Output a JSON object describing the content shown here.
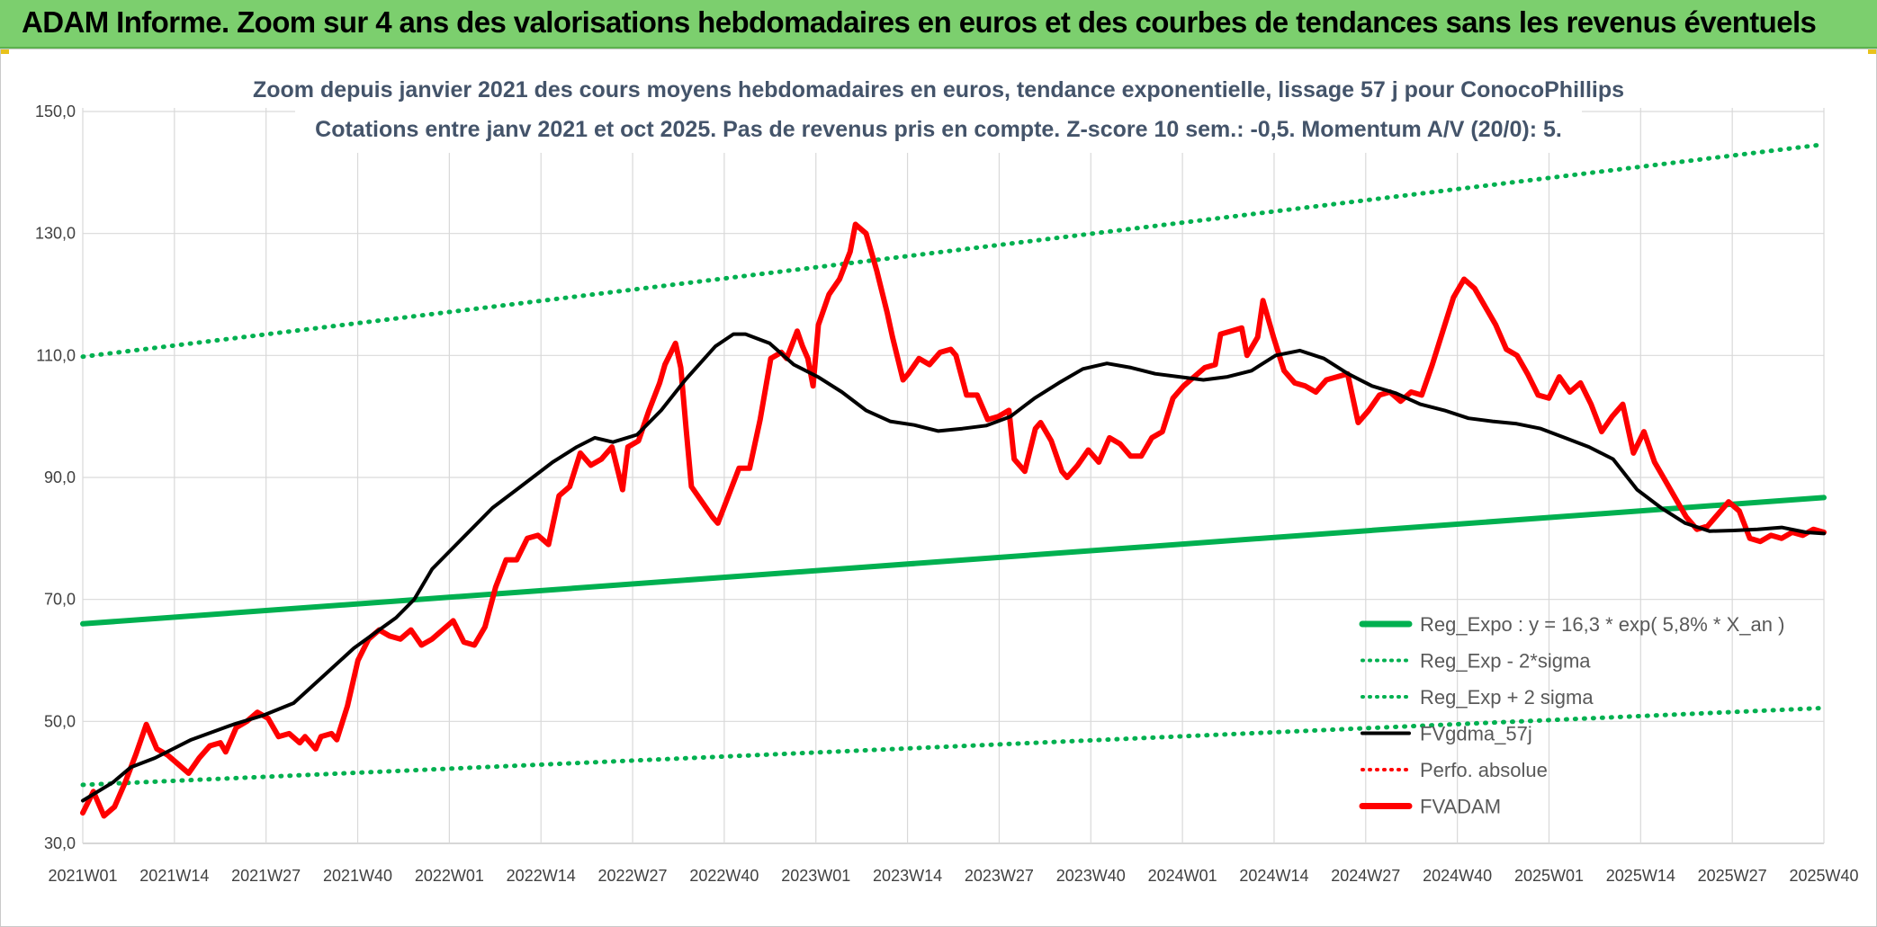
{
  "header": {
    "banner_title": "ADAM Informe. Zoom sur 4 ans des valorisations hebdomadaires en euros et des courbes de tendances sans les revenus éventuels"
  },
  "chart_data": {
    "type": "line",
    "title": "Zoom depuis janvier 2021 des cours moyens hebdomadaires en euros, tendance exponentielle, lissage 57 j pour ConocoPhillips",
    "subtitle": "Cotations entre janv 2021 et oct 2025. Pas de revenus pris en compte. Z-score 10 sem.: -0,5. Momentum A/V (20/0): 5.",
    "xlabel": "",
    "ylabel": "",
    "ylim": [
      30,
      150
    ],
    "grid": true,
    "legend_position": "bottom-right",
    "y_ticks": [
      "30,0",
      "50,0",
      "70,0",
      "90,0",
      "110,0",
      "130,0",
      "150,0"
    ],
    "x_ticks": [
      "2021W01",
      "2021W14",
      "2021W27",
      "2021W40",
      "2022W01",
      "2022W14",
      "2022W27",
      "2022W40",
      "2023W01",
      "2023W14",
      "2023W27",
      "2023W40",
      "2024W01",
      "2024W14",
      "2024W27",
      "2024W40",
      "2025W01",
      "2025W14",
      "2025W27",
      "2025W40"
    ],
    "series": [
      {
        "name": "Reg_Expo : y = 16,3 * exp( 5,8% *  X_an )",
        "color": "#00b050",
        "style": "solid",
        "points": [
          [
            0,
            66.0
          ],
          [
            247,
            86.7
          ]
        ]
      },
      {
        "name": "Reg_Exp - 2*sigma",
        "color": "#00b050",
        "style": "dotted",
        "points": [
          [
            0,
            39.6
          ],
          [
            247,
            52.2
          ]
        ]
      },
      {
        "name": "Reg_Exp + 2 sigma",
        "color": "#00b050",
        "style": "dotted",
        "points": [
          [
            0,
            109.8
          ],
          [
            247,
            144.6
          ]
        ]
      },
      {
        "name": "FVgdma_57j",
        "color": "#000000",
        "style": "solid",
        "points": [
          [
            0,
            37
          ],
          [
            5,
            40
          ],
          [
            8,
            42.5
          ],
          [
            12,
            44
          ],
          [
            18,
            47
          ],
          [
            25,
            49.5
          ],
          [
            30,
            51
          ],
          [
            35,
            53
          ],
          [
            40,
            57.5
          ],
          [
            45,
            62
          ],
          [
            52,
            67
          ],
          [
            55,
            70
          ],
          [
            58,
            75
          ],
          [
            63,
            80
          ],
          [
            68,
            85
          ],
          [
            72,
            88
          ],
          [
            78,
            92.5
          ],
          [
            82,
            95
          ],
          [
            85,
            96.5
          ],
          [
            88,
            95.8
          ],
          [
            92,
            97
          ],
          [
            96,
            101
          ],
          [
            100,
            106
          ],
          [
            105,
            111.5
          ],
          [
            108,
            113.5
          ],
          [
            110,
            113.5
          ],
          [
            114,
            112
          ],
          [
            118,
            108.5
          ],
          [
            122,
            106.5
          ],
          [
            126,
            104
          ],
          [
            130,
            101
          ],
          [
            134,
            99.2
          ],
          [
            138,
            98.6
          ],
          [
            142,
            97.6
          ],
          [
            146,
            98
          ],
          [
            150,
            98.5
          ],
          [
            154,
            100
          ],
          [
            158,
            103
          ],
          [
            162,
            105.5
          ],
          [
            166,
            107.8
          ],
          [
            170,
            108.7
          ],
          [
            174,
            108
          ],
          [
            178,
            107
          ],
          [
            182,
            106.5
          ],
          [
            186,
            106
          ],
          [
            190,
            106.5
          ],
          [
            194,
            107.5
          ],
          [
            198,
            110
          ],
          [
            202,
            110.8
          ],
          [
            206,
            109.5
          ],
          [
            210,
            107
          ],
          [
            214,
            105
          ],
          [
            218,
            103.8
          ],
          [
            222,
            102
          ],
          [
            226,
            101
          ],
          [
            230,
            99.7
          ],
          [
            234,
            99.2
          ],
          [
            238,
            98.8
          ],
          [
            242,
            98
          ],
          [
            246,
            96.5
          ],
          [
            250,
            95
          ],
          [
            254,
            93
          ],
          [
            258,
            88
          ],
          [
            262,
            85
          ],
          [
            266,
            82.5
          ],
          [
            270,
            81.2
          ],
          [
            274,
            81.3
          ],
          [
            278,
            81.5
          ],
          [
            282,
            81.8
          ],
          [
            286,
            81
          ],
          [
            289,
            80.8
          ]
        ]
      },
      {
        "name": "Perfo. absolue",
        "color": "#ff0000",
        "style": "dotted",
        "points": []
      },
      {
        "name": "FVADAM",
        "color": "#ff0000",
        "style": "solid",
        "points": [
          [
            0,
            35
          ],
          [
            2,
            38.5
          ],
          [
            4,
            34.5
          ],
          [
            6,
            36
          ],
          [
            8,
            40
          ],
          [
            10,
            44.5
          ],
          [
            12,
            49.5
          ],
          [
            14,
            45.5
          ],
          [
            16,
            44.5
          ],
          [
            18,
            43
          ],
          [
            20,
            41.5
          ],
          [
            22,
            44
          ],
          [
            24,
            46
          ],
          [
            26,
            46.5
          ],
          [
            27,
            45
          ],
          [
            29,
            49
          ],
          [
            31,
            50
          ],
          [
            33,
            51.5
          ],
          [
            35,
            50.5
          ],
          [
            37,
            47.5
          ],
          [
            39,
            48
          ],
          [
            41,
            46.5
          ],
          [
            42,
            47.5
          ],
          [
            44,
            45.5
          ],
          [
            45,
            47.5
          ],
          [
            47,
            48
          ],
          [
            48,
            47
          ],
          [
            50,
            52.5
          ],
          [
            52,
            60
          ],
          [
            54,
            63.5
          ],
          [
            56,
            65
          ],
          [
            58,
            64
          ],
          [
            60,
            63.5
          ],
          [
            62,
            65
          ],
          [
            64,
            62.5
          ],
          [
            66,
            63.5
          ],
          [
            68,
            65
          ],
          [
            70,
            66.5
          ],
          [
            72,
            63
          ],
          [
            74,
            62.5
          ],
          [
            76,
            65.5
          ],
          [
            78,
            72
          ],
          [
            80,
            76.5
          ],
          [
            82,
            76.5
          ],
          [
            84,
            80
          ],
          [
            86,
            80.5
          ],
          [
            88,
            79
          ],
          [
            90,
            87
          ],
          [
            92,
            88.5
          ],
          [
            94,
            94
          ],
          [
            96,
            92
          ],
          [
            98,
            93
          ],
          [
            100,
            95
          ],
          [
            102,
            88
          ],
          [
            103,
            95
          ],
          [
            105,
            96
          ],
          [
            107,
            101
          ],
          [
            109,
            105.5
          ],
          [
            110,
            108.5
          ],
          [
            112,
            112
          ],
          [
            113,
            108
          ],
          [
            114,
            98
          ],
          [
            115,
            88.5
          ],
          [
            117,
            86
          ],
          [
            119,
            83.5
          ],
          [
            120,
            82.5
          ],
          [
            122,
            87
          ],
          [
            124,
            91.5
          ],
          [
            126,
            91.5
          ],
          [
            128,
            99.5
          ],
          [
            130,
            109.5
          ],
          [
            132,
            110.5
          ],
          [
            133,
            109.5
          ],
          [
            135,
            114
          ],
          [
            136,
            111.5
          ],
          [
            137,
            109.5
          ],
          [
            138,
            105
          ],
          [
            139,
            115
          ],
          [
            141,
            120
          ],
          [
            143,
            122.5
          ],
          [
            145,
            127
          ],
          [
            146,
            131.5
          ],
          [
            148,
            130
          ],
          [
            150,
            124
          ],
          [
            152,
            117
          ],
          [
            153,
            113
          ],
          [
            155,
            106
          ],
          [
            156,
            107
          ],
          [
            158,
            109.5
          ],
          [
            160,
            108.5
          ],
          [
            162,
            110.5
          ],
          [
            164,
            111
          ],
          [
            165,
            110
          ],
          [
            167,
            103.5
          ],
          [
            169,
            103.5
          ],
          [
            171,
            99.5
          ],
          [
            173,
            100
          ],
          [
            175,
            101
          ],
          [
            176,
            93
          ],
          [
            178,
            91
          ],
          [
            180,
            98
          ],
          [
            181,
            99
          ],
          [
            183,
            96
          ],
          [
            185,
            91
          ],
          [
            186,
            90
          ],
          [
            188,
            92
          ],
          [
            190,
            94.5
          ],
          [
            192,
            92.5
          ],
          [
            194,
            96.5
          ],
          [
            196,
            95.5
          ],
          [
            198,
            93.5
          ],
          [
            200,
            93.5
          ],
          [
            202,
            96.5
          ],
          [
            204,
            97.5
          ],
          [
            206,
            103
          ],
          [
            208,
            105
          ],
          [
            210,
            106.5
          ],
          [
            212,
            108
          ],
          [
            214,
            108.5
          ],
          [
            215,
            113.5
          ],
          [
            217,
            114
          ],
          [
            219,
            114.5
          ],
          [
            220,
            110
          ],
          [
            222,
            113
          ],
          [
            223,
            119
          ],
          [
            225,
            113
          ],
          [
            227,
            107.5
          ],
          [
            229,
            105.5
          ],
          [
            231,
            105
          ],
          [
            233,
            104
          ],
          [
            235,
            106
          ],
          [
            237,
            106.5
          ],
          [
            239,
            107
          ],
          [
            241,
            99
          ],
          [
            243,
            101
          ],
          [
            245,
            103.5
          ],
          [
            247,
            104
          ],
          [
            249,
            102.5
          ],
          [
            251,
            104
          ],
          [
            253,
            103.5
          ],
          [
            255,
            108.5
          ],
          [
            257,
            114
          ],
          [
            259,
            119.5
          ],
          [
            261,
            122.5
          ],
          [
            263,
            121
          ],
          [
            265,
            118
          ],
          [
            267,
            115
          ],
          [
            269,
            111
          ],
          [
            271,
            110
          ],
          [
            273,
            107
          ],
          [
            275,
            103.5
          ],
          [
            277,
            103
          ],
          [
            279,
            106.5
          ],
          [
            281,
            104
          ],
          [
            283,
            105.5
          ],
          [
            285,
            102
          ],
          [
            287,
            97.5
          ],
          [
            289,
            100
          ],
          [
            291,
            102
          ],
          [
            293,
            94
          ],
          [
            295,
            97.5
          ]
        ]
      }
    ]
  }
}
